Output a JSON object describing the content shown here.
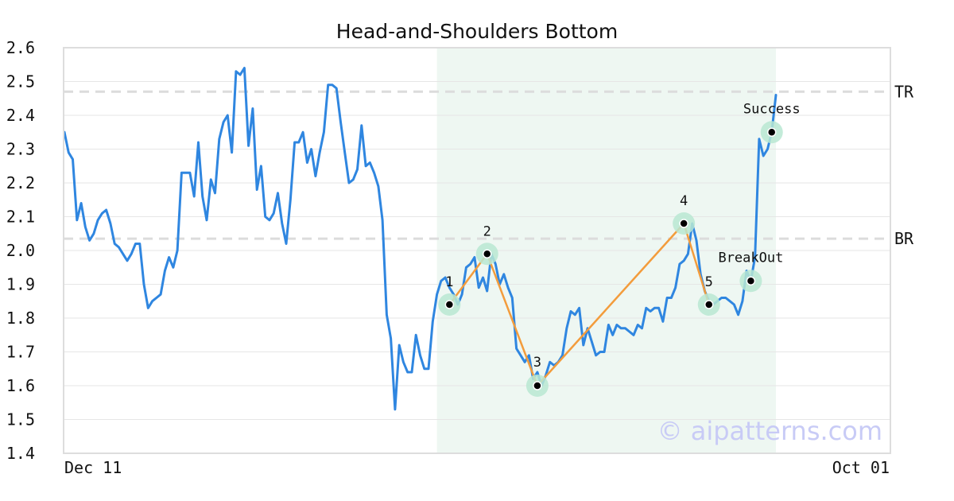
{
  "chart_data": {
    "type": "line",
    "title": "Head-and-Shoulders Bottom",
    "xlabel": "",
    "ylabel": "",
    "ylim": [
      1.4,
      2.6
    ],
    "y_ticks": [
      2.6,
      2.5,
      2.4,
      2.3,
      2.2,
      2.1,
      2.0,
      1.9,
      1.8,
      1.7,
      1.6,
      1.5,
      1.4
    ],
    "y_tick_labels": [
      "2.6",
      "2.5",
      "2.4",
      "2.3",
      "2.2",
      "2.1",
      "2.0",
      "1.9",
      "1.8",
      "1.7",
      "1.6",
      "1.5",
      "1.4"
    ],
    "x_tick_labels": [
      "Dec 11",
      "Oct 01"
    ],
    "grid": "horizontal",
    "series": [
      {
        "color": "#2f86e0",
        "values": [
          2.35,
          2.29,
          2.27,
          2.09,
          2.14,
          2.07,
          2.03,
          2.05,
          2.09,
          2.11,
          2.12,
          2.08,
          2.02,
          2.01,
          1.99,
          1.97,
          1.99,
          2.02,
          2.02,
          1.9,
          1.83,
          1.85,
          1.86,
          1.87,
          1.94,
          1.98,
          1.95,
          2.0,
          2.23,
          2.23,
          2.23,
          2.16,
          2.32,
          2.16,
          2.09,
          2.21,
          2.17,
          2.33,
          2.38,
          2.4,
          2.29,
          2.53,
          2.52,
          2.54,
          2.31,
          2.42,
          2.18,
          2.25,
          2.1,
          2.09,
          2.11,
          2.17,
          2.08,
          2.02,
          2.15,
          2.32,
          2.32,
          2.35,
          2.26,
          2.3,
          2.22,
          2.29,
          2.35,
          2.49,
          2.49,
          2.48,
          2.38,
          2.29,
          2.2,
          2.21,
          2.24,
          2.37,
          2.25,
          2.26,
          2.23,
          2.19,
          2.09,
          1.81,
          1.74,
          1.53,
          1.72,
          1.67,
          1.64,
          1.64,
          1.75,
          1.69,
          1.65,
          1.65,
          1.79,
          1.87,
          1.91,
          1.92,
          1.89,
          1.87,
          1.84,
          1.87,
          1.95,
          1.96,
          1.98,
          1.89,
          1.92,
          1.88,
          1.99,
          1.96,
          1.9,
          1.93,
          1.89,
          1.86,
          1.71,
          1.69,
          1.67,
          1.69,
          1.62,
          1.64,
          1.6,
          1.63,
          1.67,
          1.66,
          1.67,
          1.69,
          1.77,
          1.82,
          1.81,
          1.83,
          1.72,
          1.77,
          1.73,
          1.69,
          1.7,
          1.7,
          1.78,
          1.75,
          1.78,
          1.77,
          1.77,
          1.76,
          1.75,
          1.78,
          1.77,
          1.83,
          1.82,
          1.83,
          1.83,
          1.79,
          1.86,
          1.86,
          1.89,
          1.96,
          1.97,
          1.99,
          2.08,
          2.03,
          1.93,
          1.88,
          1.85,
          1.84,
          1.85,
          1.86,
          1.86,
          1.85,
          1.84,
          1.81,
          1.85,
          1.94,
          1.91,
          1.98,
          2.33,
          2.28,
          2.3,
          2.35,
          2.46
        ]
      }
    ],
    "pattern_region": {
      "start_index": 89,
      "end_index": 170,
      "color": "#eef7f2"
    },
    "levels": [
      {
        "label": "TR",
        "value": 2.47
      },
      {
        "label": "BR",
        "value": 2.035
      }
    ],
    "pattern_points": [
      {
        "label": "1",
        "index": 92,
        "value": 1.84
      },
      {
        "label": "2",
        "index": 101,
        "value": 1.99
      },
      {
        "label": "3",
        "index": 113,
        "value": 1.6
      },
      {
        "label": "4",
        "index": 148,
        "value": 2.08
      },
      {
        "label": "5",
        "index": 154,
        "value": 1.84
      }
    ],
    "breakout_point": {
      "label": "BreakOut",
      "index": 164,
      "value": 1.91
    },
    "success_point": {
      "label": "Success",
      "index": 169,
      "value": 2.35
    },
    "pattern_line_color": "#f39c3c",
    "marker_halo_color": "#b8e8d2",
    "watermark": "© aipatterns.com"
  }
}
